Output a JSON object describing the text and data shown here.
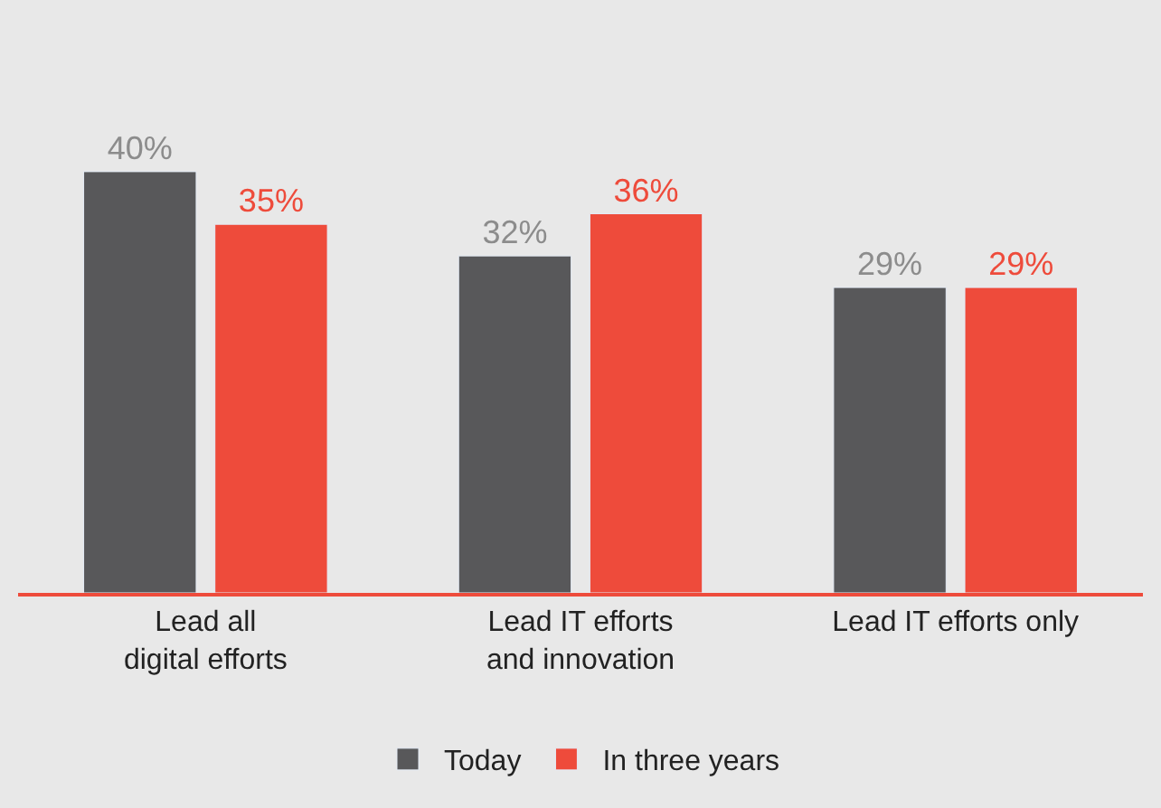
{
  "chart_data": {
    "type": "bar",
    "categories": [
      "Lead all\ndigital efforts",
      "Lead IT efforts\nand innovation",
      "Lead IT efforts only"
    ],
    "series": [
      {
        "name": "Today",
        "color": "#58585a",
        "values": [
          40,
          32,
          29
        ],
        "value_labels": [
          "40%",
          "32%",
          "29%"
        ]
      },
      {
        "name": "In three years",
        "color": "#ee4b3b",
        "values": [
          35,
          36,
          29
        ],
        "value_labels": [
          "35%",
          "36%",
          "29%"
        ]
      }
    ],
    "legend": "bottom"
  }
}
